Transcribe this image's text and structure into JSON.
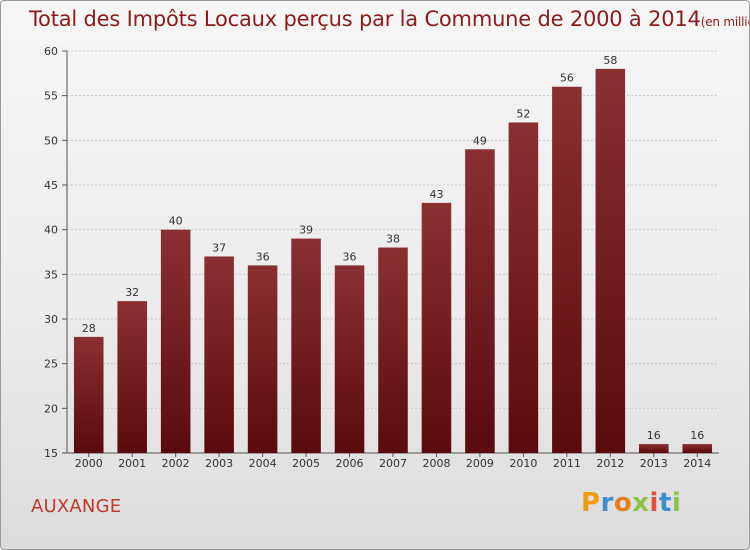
{
  "title": "Total des Impôts Locaux perçus par la Commune de 2000 à 2014",
  "title_unit": "(en milliers d'€)",
  "commune": "AUXANGE",
  "logo_text": "Proxiti",
  "colors": {
    "bar_light": "#8a3033",
    "bar_dark": "#5a0a0e",
    "title": "#8c1c1c",
    "commune": "#c0392b",
    "grid": "#c8c8c8"
  },
  "chart_data": {
    "type": "bar",
    "title": "Total des Impôts Locaux perçus par la Commune de 2000 à 2014 (en milliers d'€)",
    "xlabel": "",
    "ylabel": "",
    "categories": [
      "2000",
      "2001",
      "2002",
      "2003",
      "2004",
      "2005",
      "2006",
      "2007",
      "2008",
      "2009",
      "2010",
      "2011",
      "2012",
      "2013",
      "2014"
    ],
    "values": [
      28,
      32,
      40,
      37,
      36,
      39,
      36,
      38,
      43,
      49,
      52,
      56,
      58,
      16,
      16
    ],
    "ylim": [
      15,
      60
    ],
    "yticks": [
      15,
      20,
      25,
      30,
      35,
      40,
      45,
      50,
      55,
      60
    ],
    "grid": true
  }
}
